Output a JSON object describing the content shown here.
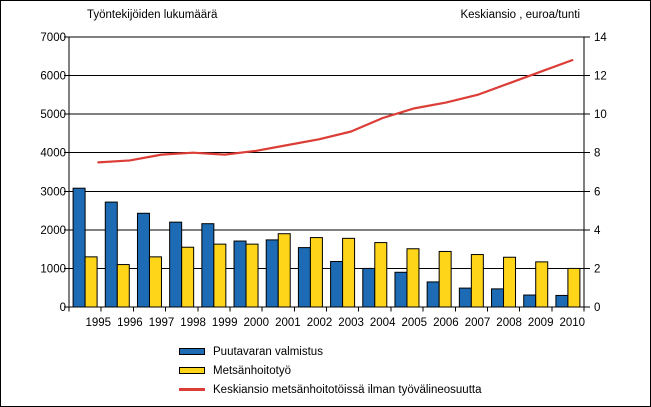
{
  "chart_data": {
    "type": "combo",
    "categories": [
      "1995",
      "1996",
      "1997",
      "1998",
      "1999",
      "2000",
      "2001",
      "2002",
      "2003",
      "2004",
      "2005",
      "2006",
      "2007",
      "2008",
      "2009",
      "2010"
    ],
    "series": [
      {
        "name": "Puutavaran valmistus",
        "type": "bar",
        "axis": "left",
        "color": "#1c6bb4",
        "values": [
          3080,
          2720,
          2430,
          2200,
          2160,
          1710,
          1740,
          1540,
          1180,
          1000,
          900,
          650,
          490,
          470,
          310,
          300
        ]
      },
      {
        "name": "Metsänhoitotyö",
        "type": "bar",
        "axis": "left",
        "color": "#ffd51a",
        "values": [
          1300,
          1100,
          1300,
          1550,
          1630,
          1630,
          1900,
          1800,
          1780,
          1670,
          1510,
          1440,
          1360,
          1290,
          1170,
          1000
        ]
      },
      {
        "name": "Keskiansio metsänhoitotöissä ilman työvälineosuutta",
        "type": "line",
        "axis": "right",
        "color": "#dc3d36",
        "values": [
          7.5,
          7.6,
          7.9,
          8.0,
          7.9,
          8.1,
          8.4,
          8.7,
          9.1,
          9.8,
          10.3,
          10.6,
          11.0,
          11.6,
          12.2,
          12.8
        ]
      }
    ],
    "left_axis": {
      "title": "Työntekijöiden lukumäärä",
      "min": 0,
      "max": 7000,
      "step": 1000
    },
    "right_axis": {
      "title": "Keskiansio , euroa/tunti",
      "min": 0,
      "max": 14,
      "step": 2
    },
    "grid": "horizontal",
    "legend_position": "bottom-left"
  }
}
